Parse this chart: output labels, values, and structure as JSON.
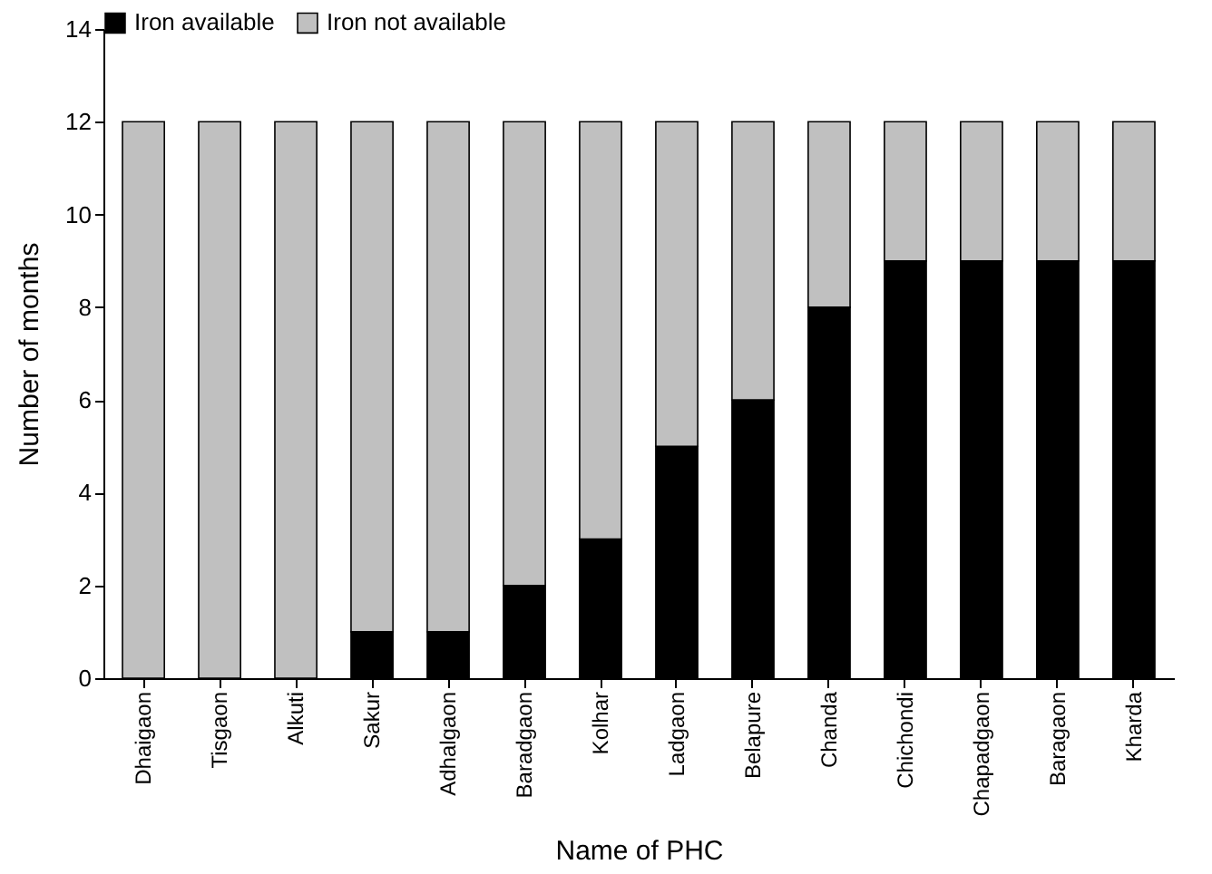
{
  "chart_data": {
    "type": "bar",
    "stacked": true,
    "xlabel": "Name of PHC",
    "ylabel": "Number of months",
    "categories": [
      "Dhaigaon",
      "Tisgaon",
      "Alkuti",
      "Sakur",
      "Adhalgaon",
      "Baradgaon",
      "Kolhar",
      "Ladgaon",
      "Belapure",
      "Chanda",
      "Chichondi",
      "Chapadgaon",
      "Baragaon",
      "Kharda"
    ],
    "series": [
      {
        "name": "Iron available",
        "color": "#000000",
        "values": [
          0,
          0,
          0,
          1,
          1,
          2,
          3,
          5,
          6,
          8,
          9,
          9,
          9,
          9
        ]
      },
      {
        "name": "Iron not available",
        "color": "#c0c0c0",
        "values": [
          12,
          12,
          12,
          11,
          11,
          10,
          9,
          7,
          6,
          4,
          3,
          3,
          3,
          3
        ]
      }
    ],
    "ylim": [
      0,
      14
    ],
    "yticks": [
      0,
      2,
      4,
      6,
      8,
      10,
      12,
      14
    ],
    "grid": false,
    "legend": "top"
  }
}
